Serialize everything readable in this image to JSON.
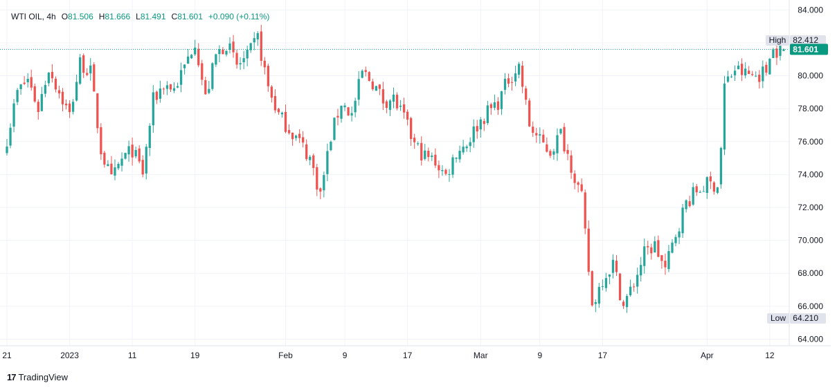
{
  "legend": {
    "symbol": "WTI OIL",
    "interval": "4h",
    "open_label": "O",
    "open": "81.506",
    "high_label": "H",
    "high": "81.666",
    "low_label": "L",
    "low": "81.491",
    "close_label": "C",
    "close": "81.601",
    "change": "+0.090 (+0.11%)"
  },
  "brand": {
    "mark": "17",
    "name": "TradingView"
  },
  "colors": {
    "up": "#26a69a",
    "down": "#ef5350",
    "grid": "#f0f3fa",
    "last_price": "#089981",
    "text": "#131722"
  },
  "chart_data": {
    "type": "candlestick",
    "title": "WTI OIL, 4h",
    "ylim": [
      63.6,
      84.6
    ],
    "y_ticks": [
      "64.000",
      "66.000",
      "68.000",
      "70.000",
      "72.000",
      "74.000",
      "76.000",
      "78.000",
      "80.000",
      "82.000",
      "84.000"
    ],
    "x_ticks": [
      {
        "label": "21",
        "index": 0
      },
      {
        "label": "2023",
        "index": 18
      },
      {
        "label": "11",
        "index": 36
      },
      {
        "label": "19",
        "index": 54
      },
      {
        "label": "Feb",
        "index": 80
      },
      {
        "label": "9",
        "index": 97
      },
      {
        "label": "17",
        "index": 115
      },
      {
        "label": "Mar",
        "index": 136
      },
      {
        "label": "9",
        "index": 153
      },
      {
        "label": "17",
        "index": 171
      },
      {
        "label": "Apr",
        "index": 201
      },
      {
        "label": "12",
        "index": 219
      }
    ],
    "last_price": "81.601",
    "high_marker": {
      "label": "High",
      "value": "82.412"
    },
    "low_marker": {
      "label": "Low",
      "value": "64.210"
    },
    "gap_indices": [
      205
    ],
    "close_path": [
      [
        0,
        76.2
      ],
      [
        3,
        79.0
      ],
      [
        6,
        79.8
      ],
      [
        9,
        78.0
      ],
      [
        12,
        80.5
      ],
      [
        15,
        79.0
      ],
      [
        18,
        77.6
      ],
      [
        21,
        80.8
      ],
      [
        24,
        80.2
      ],
      [
        27,
        75.5
      ],
      [
        30,
        73.6
      ],
      [
        33,
        74.9
      ],
      [
        36,
        75.5
      ],
      [
        39,
        74.1
      ],
      [
        42,
        78.5
      ],
      [
        45,
        79.5
      ],
      [
        48,
        79.2
      ],
      [
        51,
        80.5
      ],
      [
        54,
        82.2
      ],
      [
        57,
        78.6
      ],
      [
        60,
        81.2
      ],
      [
        63,
        82.0
      ],
      [
        66,
        80.6
      ],
      [
        69,
        81.1
      ],
      [
        72,
        82.3
      ],
      [
        75,
        79.3
      ],
      [
        78,
        77.6
      ],
      [
        81,
        76.8
      ],
      [
        84,
        76.0
      ],
      [
        87,
        75.0
      ],
      [
        90,
        72.8
      ],
      [
        93,
        76.3
      ],
      [
        96,
        78.4
      ],
      [
        99,
        77.6
      ],
      [
        102,
        80.2
      ],
      [
        105,
        79.6
      ],
      [
        108,
        78.5
      ],
      [
        111,
        78.6
      ],
      [
        114,
        77.4
      ],
      [
        117,
        75.8
      ],
      [
        120,
        75.1
      ],
      [
        123,
        74.8
      ],
      [
        126,
        73.9
      ],
      [
        129,
        75.4
      ],
      [
        132,
        75.9
      ],
      [
        135,
        77.0
      ],
      [
        138,
        77.8
      ],
      [
        141,
        78.4
      ],
      [
        144,
        79.8
      ],
      [
        147,
        80.6
      ],
      [
        150,
        77.0
      ],
      [
        153,
        76.0
      ],
      [
        156,
        75.4
      ],
      [
        159,
        76.5
      ],
      [
        162,
        74.6
      ],
      [
        165,
        72.5
      ],
      [
        168,
        66.0
      ],
      [
        171,
        67.7
      ],
      [
        174,
        68.6
      ],
      [
        177,
        66.0
      ],
      [
        180,
        67.4
      ],
      [
        183,
        69.2
      ],
      [
        186,
        69.7
      ],
      [
        189,
        68.2
      ],
      [
        192,
        70.4
      ],
      [
        195,
        72.3
      ],
      [
        198,
        73.0
      ],
      [
        201,
        73.4
      ],
      [
        204,
        73.4
      ],
      [
        205,
        75.6
      ],
      [
        206,
        79.4
      ],
      [
        209,
        80.4
      ],
      [
        212,
        80.1
      ],
      [
        215,
        80.0
      ],
      [
        218,
        80.3
      ],
      [
        219,
        81.5
      ],
      [
        223,
        81.6
      ]
    ],
    "notes": "4-hour OHLC candles of WTI crude oil from Dec 21 (2022) to Apr 12 (2023); close path traced from the chart and individual candles reconstructed deterministically around it. Data gap between late March and early April."
  }
}
